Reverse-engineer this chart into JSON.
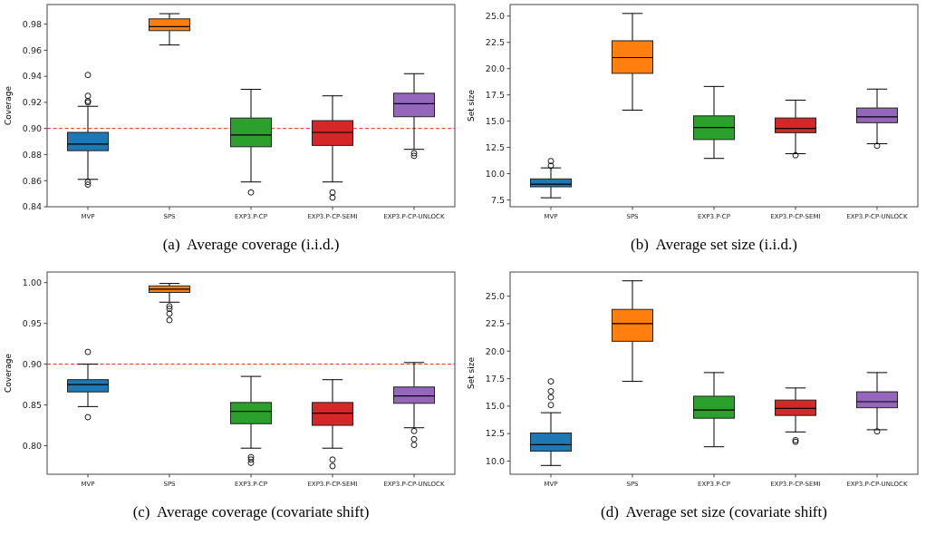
{
  "chart_data": [
    {
      "type": "box",
      "title": "(a)  Average coverage (i.i.d.)",
      "ylabel": "Coverage",
      "categories": [
        "MVP",
        "SPS",
        "EXP3.P-CP",
        "EXP3.P-CP-SEMI",
        "EXP3.P-CP-UNLOCK"
      ],
      "colors": [
        "#1f77b4",
        "#ff7f0e",
        "#2ca02c",
        "#d62728",
        "#9467bd"
      ],
      "ylim": [
        0.84,
        0.995
      ],
      "yticks": [
        {
          "value": 0.84,
          "label": "0.84"
        },
        {
          "value": 0.86,
          "label": "0.86"
        },
        {
          "value": 0.88,
          "label": "0.88"
        },
        {
          "value": 0.9,
          "label": "0.90"
        },
        {
          "value": 0.92,
          "label": "0.92"
        },
        {
          "value": 0.94,
          "label": "0.94"
        },
        {
          "value": 0.96,
          "label": "0.96"
        },
        {
          "value": 0.98,
          "label": "0.98"
        }
      ],
      "grid": false,
      "marker": "circle",
      "ref_lines": [
        {
          "axis": "y",
          "value": 0.9,
          "color": "#ff0000",
          "line_style": "dashed"
        }
      ],
      "boxes": [
        {
          "low": 0.861,
          "q1": 0.883,
          "median": 0.888,
          "q3": 0.897,
          "high": 0.917,
          "outliers": [
            0.941,
            0.925,
            0.921,
            0.92,
            0.859,
            0.857
          ]
        },
        {
          "low": 0.964,
          "q1": 0.975,
          "median": 0.978,
          "q3": 0.984,
          "high": 0.988
        },
        {
          "low": 0.859,
          "q1": 0.886,
          "median": 0.895,
          "q3": 0.908,
          "high": 0.93,
          "outliers": [
            0.851
          ]
        },
        {
          "low": 0.859,
          "q1": 0.887,
          "median": 0.897,
          "q3": 0.906,
          "high": 0.925,
          "outliers": [
            0.851,
            0.847
          ]
        },
        {
          "low": 0.884,
          "q1": 0.909,
          "median": 0.919,
          "q3": 0.927,
          "high": 0.942,
          "outliers": [
            0.881,
            0.879
          ]
        }
      ]
    },
    {
      "type": "box",
      "title": "(b)  Average set size (i.i.d.)",
      "ylabel": "Set size",
      "categories": [
        "MVP",
        "SPS",
        "EXP3.P-CP",
        "EXP3.P-CP-SEMI",
        "EXP3.P-CP-UNLOCK"
      ],
      "colors": [
        "#1f77b4",
        "#ff7f0e",
        "#2ca02c",
        "#d62728",
        "#9467bd"
      ],
      "ylim": [
        6.85,
        26.1
      ],
      "yticks": [
        {
          "value": 7.5,
          "label": "7.5"
        },
        {
          "value": 10,
          "label": "10.0"
        },
        {
          "value": 12.5,
          "label": "12.5"
        },
        {
          "value": 15,
          "label": "15.0"
        },
        {
          "value": 17.5,
          "label": "17.5"
        },
        {
          "value": 20,
          "label": "20.0"
        },
        {
          "value": 22.5,
          "label": "22.5"
        },
        {
          "value": 25,
          "label": "25.0"
        }
      ],
      "grid": false,
      "marker": "circle",
      "boxes": [
        {
          "low": 7.7,
          "q1": 8.75,
          "median": 9.0,
          "q3": 9.5,
          "high": 10.55,
          "outliers": [
            11.2,
            10.75
          ]
        },
        {
          "low": 16.05,
          "q1": 19.55,
          "median": 21.05,
          "q3": 22.65,
          "high": 25.25
        },
        {
          "low": 11.45,
          "q1": 13.25,
          "median": 14.4,
          "q3": 15.5,
          "high": 18.3
        },
        {
          "low": 11.9,
          "q1": 13.9,
          "median": 14.3,
          "q3": 15.3,
          "high": 17.0,
          "outliers": [
            11.75
          ]
        },
        {
          "low": 12.85,
          "q1": 14.85,
          "median": 15.4,
          "q3": 16.25,
          "high": 18.05,
          "outliers": [
            12.65
          ]
        }
      ]
    },
    {
      "type": "box",
      "title": "(c)  Average coverage (covariate shift)",
      "ylabel": "Coverage",
      "categories": [
        "MVP",
        "SPS",
        "EXP3.P-CP",
        "EXP3.P-CP-SEMI",
        "EXP3.P-CP-UNLOCK"
      ],
      "colors": [
        "#1f77b4",
        "#ff7f0e",
        "#2ca02c",
        "#d62728",
        "#9467bd"
      ],
      "ylim": [
        0.765,
        1.013
      ],
      "yticks": [
        {
          "value": 0.8,
          "label": "0.80"
        },
        {
          "value": 0.85,
          "label": "0.85"
        },
        {
          "value": 0.9,
          "label": "0.90"
        },
        {
          "value": 0.95,
          "label": "0.95"
        },
        {
          "value": 1.0,
          "label": "1.00"
        }
      ],
      "grid": false,
      "marker": "circle",
      "ref_lines": [
        {
          "axis": "y",
          "value": 0.9,
          "color": "#ff0000",
          "line_style": "dashed"
        }
      ],
      "boxes": [
        {
          "low": 0.848,
          "q1": 0.866,
          "median": 0.875,
          "q3": 0.881,
          "high": 0.9,
          "outliers": [
            0.915,
            0.835
          ]
        },
        {
          "low": 0.976,
          "q1": 0.988,
          "median": 0.992,
          "q3": 0.996,
          "high": 0.999,
          "outliers": [
            0.971,
            0.968,
            0.962,
            0.954
          ]
        },
        {
          "low": 0.797,
          "q1": 0.827,
          "median": 0.842,
          "q3": 0.853,
          "high": 0.885,
          "outliers": [
            0.786,
            0.783,
            0.779
          ]
        },
        {
          "low": 0.797,
          "q1": 0.825,
          "median": 0.84,
          "q3": 0.853,
          "high": 0.881,
          "outliers": [
            0.783,
            0.775
          ]
        },
        {
          "low": 0.822,
          "q1": 0.852,
          "median": 0.861,
          "q3": 0.872,
          "high": 0.902,
          "outliers": [
            0.818,
            0.808,
            0.801
          ]
        }
      ]
    },
    {
      "type": "box",
      "title": "(d)  Average set size (covariate shift)",
      "ylabel": "Set size",
      "categories": [
        "MVP",
        "SPS",
        "EXP3.P-CP",
        "EXP3.P-CP-SEMI",
        "EXP3.P-CP-UNLOCK"
      ],
      "colors": [
        "#1f77b4",
        "#ff7f0e",
        "#2ca02c",
        "#d62728",
        "#9467bd"
      ],
      "ylim": [
        8.8,
        27.2
      ],
      "yticks": [
        {
          "value": 10,
          "label": "10.0"
        },
        {
          "value": 12.5,
          "label": "12.5"
        },
        {
          "value": 15,
          "label": "15.0"
        },
        {
          "value": 17.5,
          "label": "17.5"
        },
        {
          "value": 20,
          "label": "20.0"
        },
        {
          "value": 22.5,
          "label": "22.5"
        },
        {
          "value": 25,
          "label": "25.0"
        }
      ],
      "grid": false,
      "marker": "circle",
      "boxes": [
        {
          "low": 9.6,
          "q1": 10.9,
          "median": 11.5,
          "q3": 12.55,
          "high": 14.4,
          "outliers": [
            17.25,
            16.35,
            15.8,
            15.1
          ]
        },
        {
          "low": 17.25,
          "q1": 20.9,
          "median": 22.5,
          "q3": 23.8,
          "high": 26.4
        },
        {
          "low": 11.3,
          "q1": 13.9,
          "median": 14.65,
          "q3": 15.9,
          "high": 18.05
        },
        {
          "low": 12.65,
          "q1": 14.15,
          "median": 14.8,
          "q3": 15.55,
          "high": 16.65,
          "outliers": [
            11.9,
            11.75
          ]
        },
        {
          "low": 12.85,
          "q1": 14.85,
          "median": 15.4,
          "q3": 16.3,
          "high": 18.05,
          "outliers": [
            12.7
          ]
        }
      ]
    }
  ]
}
